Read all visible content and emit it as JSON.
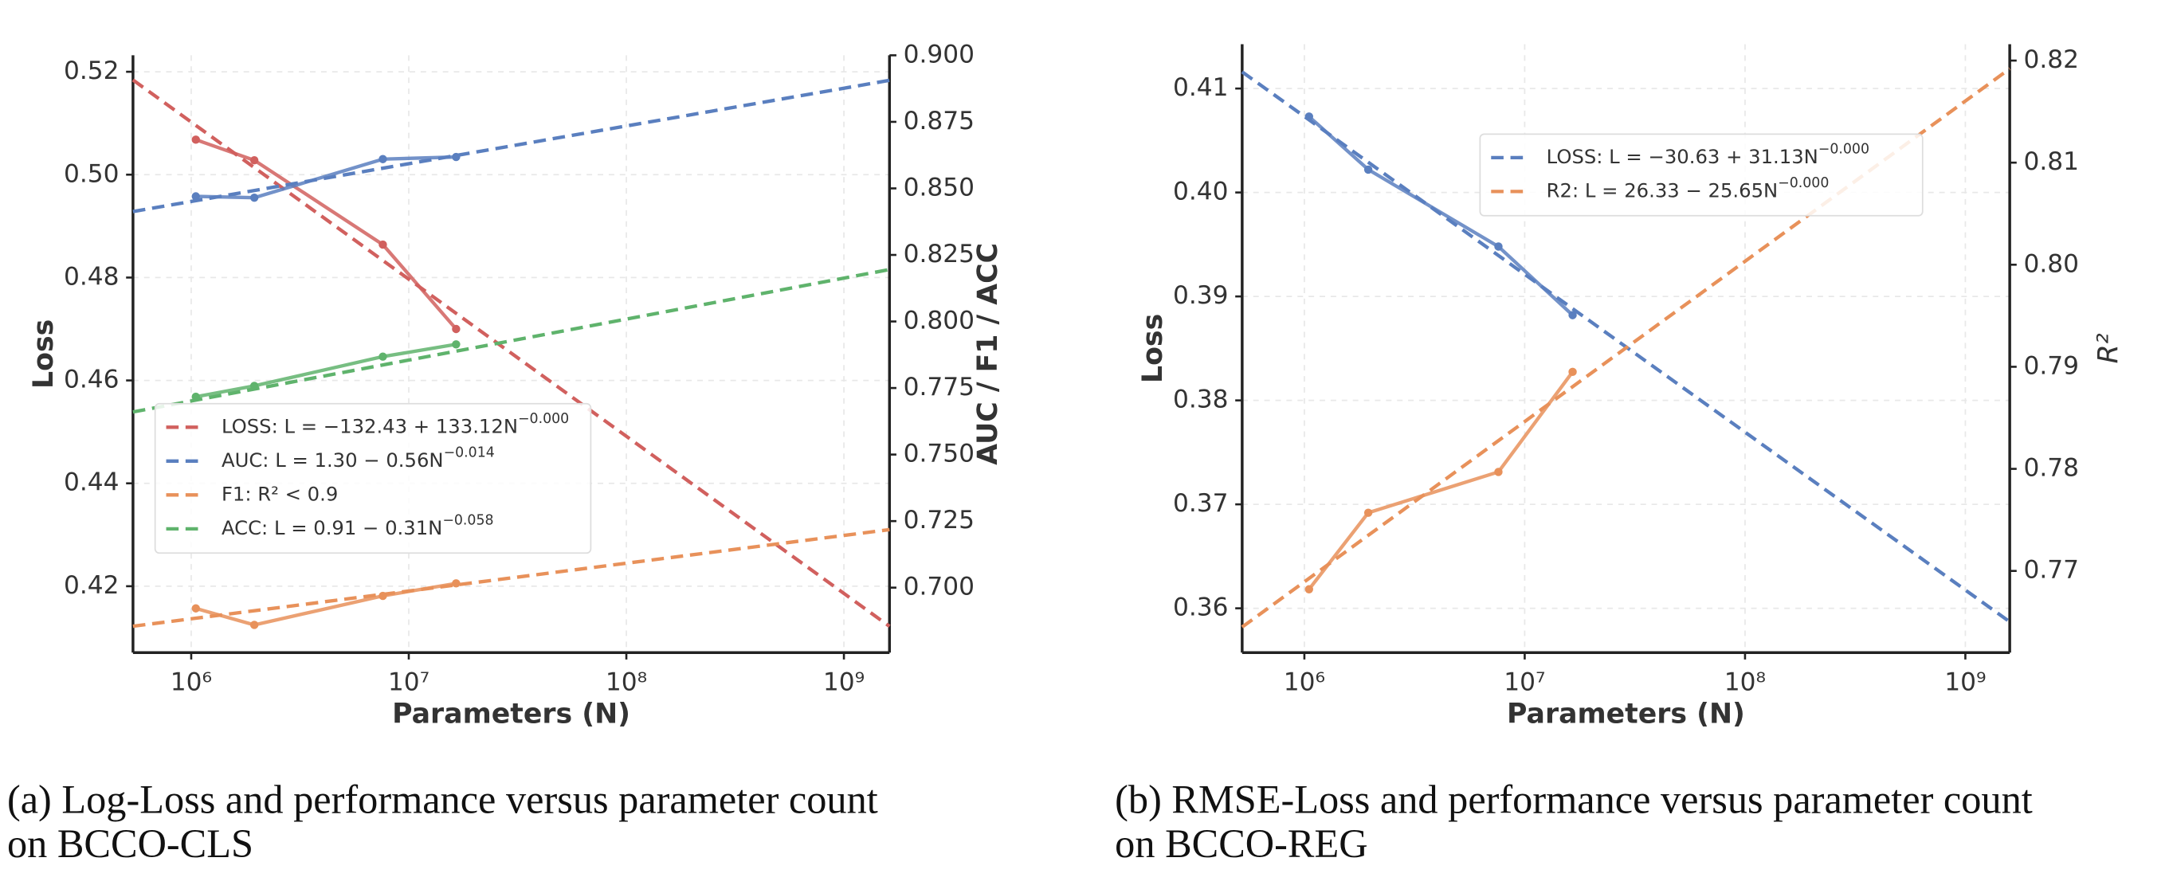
{
  "chart_data": [
    {
      "type": "line",
      "caption": [
        "(a) Log-Loss and performance versus parameter count",
        "on BCCO-CLS"
      ],
      "x_label": "Parameters (N)",
      "y_label": "Loss",
      "y2_label": "AUC / F1 / ACC",
      "x_scale": "log",
      "grid": true,
      "legend": "lower left",
      "xlim": [
        540000,
        1620000000
      ],
      "xticks": [
        {
          "value": 1000000,
          "label": "10⁶"
        },
        {
          "value": 10000000,
          "label": "10⁷"
        },
        {
          "value": 100000000,
          "label": "10⁸"
        },
        {
          "value": 1000000000,
          "label": "10⁹"
        }
      ],
      "ylim": [
        0.4071,
        0.5232
      ],
      "yticks": [
        0.42,
        0.44,
        0.46,
        0.48,
        {
          "value": 0.5,
          "label": "0.50"
        },
        0.52
      ],
      "y2lim": [
        0.6756,
        0.9
      ],
      "y2ticks": [
        {
          "value": 0.7,
          "label": "0.700"
        },
        0.725,
        {
          "value": 0.75,
          "label": "0.750"
        },
        0.775,
        {
          "value": 0.8,
          "label": "0.800"
        },
        0.825,
        {
          "value": 0.85,
          "label": "0.850"
        },
        0.875,
        {
          "value": 0.9,
          "label": "0.900"
        }
      ],
      "x": [
        1050000,
        1950000,
        7600000,
        16500000
      ],
      "series": [
        {
          "name": "LOSS: L = −132.43 + 133.12N",
          "name_exponent": "−0.000",
          "color": "#d1605e",
          "axis": "y",
          "values": [
            0.5068,
            0.5028,
            0.4864,
            0.47
          ],
          "fit_x": [
            540000,
            1620000000
          ],
          "fit_values": [
            0.5184,
            0.4122
          ]
        },
        {
          "name": "AUC: L = 1.30 − 0.56N",
          "name_exponent": "−0.014",
          "color": "#5a7fbf",
          "axis": "y2",
          "values": [
            0.847,
            0.8465,
            0.861,
            0.8618
          ],
          "fit_x": [
            540000,
            1620000000
          ],
          "fit_values": [
            0.8413,
            0.8906
          ]
        },
        {
          "name": "F1: R² < 0.9",
          "color": "#e8915a",
          "axis": "y2",
          "values": [
            0.6922,
            0.686,
            0.6969,
            0.7016
          ],
          "fit_x": [
            540000,
            1620000000
          ],
          "fit_values": [
            0.6855,
            0.7218
          ]
        },
        {
          "name": "ACC: L = 0.91 − 0.31N",
          "name_exponent": "−0.058",
          "color": "#5fb36c",
          "axis": "y2",
          "values": [
            0.7717,
            0.7758,
            0.7868,
            0.7914
          ],
          "fit_x": [
            540000,
            1620000000
          ],
          "fit_values": [
            0.766,
            0.8195
          ]
        }
      ]
    },
    {
      "type": "line",
      "caption": [
        "(b) RMSE-Loss and performance versus parameter count",
        "on BCCO-REG"
      ],
      "x_label": "Parameters (N)",
      "y_label": "Loss",
      "y2_label": "R²",
      "x_scale": "log",
      "grid": true,
      "legend": "upper center",
      "xlim": [
        522000,
        1590000000
      ],
      "xticks": [
        {
          "value": 1000000,
          "label": "10⁶"
        },
        {
          "value": 10000000,
          "label": "10⁷"
        },
        {
          "value": 100000000,
          "label": "10⁸"
        },
        {
          "value": 1000000000,
          "label": "10⁹"
        }
      ],
      "ylim": [
        0.35574,
        0.41426
      ],
      "yticks": [
        0.36,
        0.37,
        0.38,
        0.39,
        {
          "value": 0.4,
          "label": "0.40"
        },
        0.41
      ],
      "y2lim": [
        0.762,
        0.8216
      ],
      "y2ticks": [
        0.77,
        0.78,
        0.79,
        {
          "value": 0.8,
          "label": "0.80"
        },
        0.81,
        0.82
      ],
      "x": [
        1050000,
        1950000,
        7600000,
        16500000
      ],
      "series": [
        {
          "name": "LOSS: L = −30.63 + 31.13N",
          "name_exponent": "−0.000",
          "color": "#5a7fbf",
          "axis": "y",
          "values": [
            0.4073,
            0.4022,
            0.3948,
            0.3882
          ],
          "fit_x": [
            522000,
            1590000000
          ],
          "fit_values": [
            0.4116,
            0.3587
          ]
        },
        {
          "name": "R2: L = 26.33 − 25.65N",
          "name_exponent": "−0.000",
          "color": "#e8915a",
          "axis": "y2",
          "values": [
            0.7682,
            0.7757,
            0.7797,
            0.7895
          ],
          "fit_x": [
            522000,
            1590000000
          ],
          "fit_values": [
            0.7645,
            0.8192
          ]
        }
      ]
    }
  ]
}
